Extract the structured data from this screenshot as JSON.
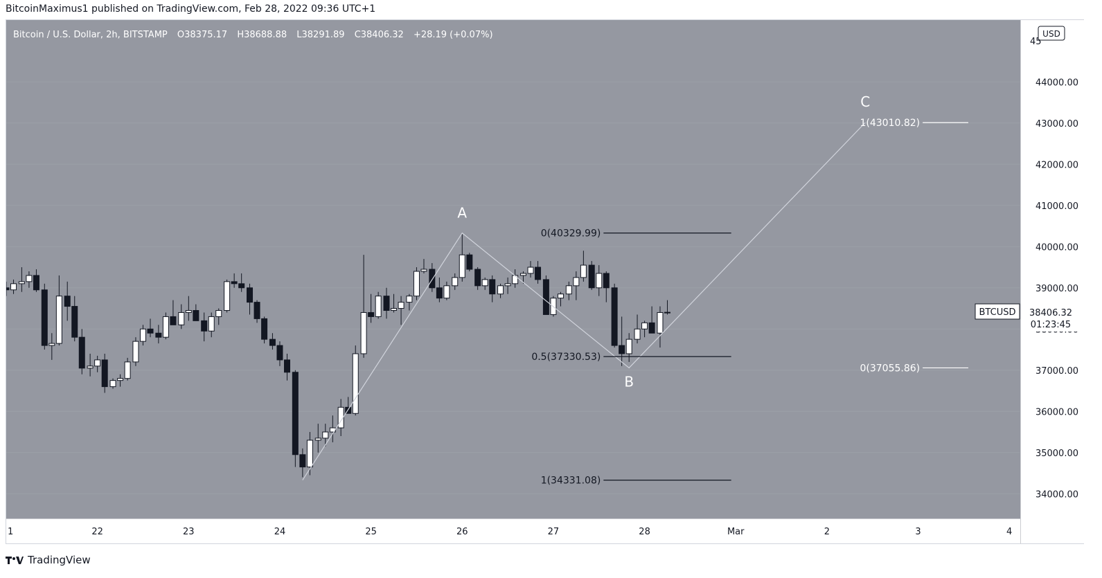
{
  "header": {
    "publisher": "BitcoinMaximus1 published on TradingView.com, Feb 28, 2022 09:36 UTC+1"
  },
  "footer": {
    "brand": "TradingView"
  },
  "colors": {
    "plot_bg": "#9598a1",
    "axis_bg": "#ffffff",
    "candle_up": "#ffffff",
    "candle_down": "#131722",
    "wave_line": "#d1d4dc",
    "fib_line": "#131722",
    "label_text": "#ffffff"
  },
  "legend": {
    "symbol": "Bitcoin / U.S. Dollar, 2h, BITSTAMP",
    "o_label": "O",
    "o_value": "38375.17",
    "h_label": "H",
    "h_value": "38688.88",
    "l_label": "L",
    "l_value": "38291.89",
    "c_label": "C",
    "c_value": "38406.32",
    "change": "+28.19 (+0.07%)"
  },
  "chart_data": {
    "type": "candlestick",
    "title": "Bitcoin / U.S. Dollar, 2h, BITSTAMP",
    "currency": "USD",
    "ylim": [
      33400,
      45500
    ],
    "y_ticks": [
      34000,
      35000,
      36000,
      37000,
      38000,
      39000,
      40000,
      41000,
      42000,
      43000,
      44000
    ],
    "y_tick_labels": [
      "34000.00",
      "35000.00",
      "36000.00",
      "37000.00",
      "38000.00",
      "39000.00",
      "40000.00",
      "41000.00",
      "42000.00",
      "43000.00",
      "44000.00"
    ],
    "y_top_partial_label": "45",
    "x_axis": {
      "first_label": "1",
      "labels": [
        {
          "t": 22,
          "label": "22"
        },
        {
          "t": 23,
          "label": "23"
        },
        {
          "t": 24,
          "label": "24"
        },
        {
          "t": 25,
          "label": "25"
        },
        {
          "t": 26,
          "label": "26"
        },
        {
          "t": 27,
          "label": "27"
        },
        {
          "t": 28,
          "label": "28"
        },
        {
          "t": 29,
          "label": "Mar"
        },
        {
          "t": 30,
          "label": "2"
        },
        {
          "t": 31,
          "label": "3"
        },
        {
          "t": 32,
          "label": "4"
        }
      ]
    },
    "symbol_badge": "BTCUSD",
    "last_price_label": "38406.32",
    "countdown_label": "01:23:45",
    "candles": [
      [
        21.0,
        39000,
        39150,
        38800,
        38950
      ],
      [
        21.08,
        38950,
        39200,
        38850,
        39100
      ],
      [
        21.17,
        39100,
        39500,
        38900,
        39150
      ],
      [
        21.25,
        39150,
        39400,
        39000,
        39300
      ],
      [
        21.33,
        39300,
        39450,
        38900,
        38950
      ],
      [
        21.42,
        38950,
        39100,
        37500,
        37600
      ],
      [
        21.5,
        37600,
        37900,
        37250,
        37650
      ],
      [
        21.58,
        37650,
        39300,
        37600,
        38800
      ],
      [
        21.67,
        38800,
        39150,
        38200,
        38550
      ],
      [
        21.75,
        38550,
        38800,
        37700,
        37800
      ],
      [
        21.83,
        37800,
        38000,
        36900,
        37050
      ],
      [
        21.92,
        37050,
        37400,
        36850,
        37100
      ],
      [
        22.0,
        37100,
        37350,
        36950,
        37250
      ],
      [
        22.08,
        37250,
        37400,
        36450,
        36600
      ],
      [
        22.17,
        36600,
        36800,
        36550,
        36750
      ],
      [
        22.25,
        36750,
        36900,
        36600,
        36800
      ],
      [
        22.33,
        36800,
        37300,
        36750,
        37200
      ],
      [
        22.42,
        37200,
        37800,
        37100,
        37700
      ],
      [
        22.5,
        37700,
        38100,
        37600,
        38000
      ],
      [
        22.58,
        38000,
        38250,
        37800,
        37900
      ],
      [
        22.67,
        37900,
        38100,
        37650,
        37800
      ],
      [
        22.75,
        37800,
        38400,
        37750,
        38300
      ],
      [
        22.83,
        38300,
        38700,
        38100,
        38100
      ],
      [
        22.92,
        38100,
        38600,
        38000,
        38400
      ],
      [
        23.0,
        38400,
        38800,
        38200,
        38450
      ],
      [
        23.08,
        38450,
        38600,
        38200,
        38200
      ],
      [
        23.17,
        38200,
        38400,
        37700,
        37950
      ],
      [
        23.25,
        37950,
        38400,
        37800,
        38300
      ],
      [
        23.33,
        38300,
        38500,
        38100,
        38450
      ],
      [
        23.42,
        38450,
        39200,
        38400,
        39150
      ],
      [
        23.5,
        39150,
        39350,
        39000,
        39100
      ],
      [
        23.58,
        39100,
        39350,
        38900,
        39000
      ],
      [
        23.67,
        39000,
        39100,
        38350,
        38650
      ],
      [
        23.75,
        38650,
        38700,
        38150,
        38250
      ],
      [
        23.83,
        38250,
        38300,
        37650,
        37750
      ],
      [
        23.92,
        37750,
        37900,
        37500,
        37600
      ],
      [
        24.0,
        37600,
        37700,
        37100,
        37250
      ],
      [
        24.08,
        37250,
        37400,
        36750,
        36950
      ],
      [
        24.17,
        36950,
        37000,
        34650,
        34950
      ],
      [
        24.25,
        34950,
        35100,
        34400,
        34650
      ],
      [
        24.33,
        34650,
        35500,
        34450,
        35300
      ],
      [
        24.42,
        35300,
        35700,
        35000,
        35350
      ],
      [
        24.5,
        35350,
        35700,
        35150,
        35500
      ],
      [
        24.58,
        35500,
        35900,
        35250,
        35600
      ],
      [
        24.67,
        35600,
        36300,
        35400,
        36100
      ],
      [
        24.75,
        36100,
        36350,
        35950,
        35950
      ],
      [
        24.83,
        35950,
        37600,
        35900,
        37400
      ],
      [
        24.92,
        37400,
        39800,
        37300,
        38400
      ],
      [
        25.0,
        38400,
        38850,
        38150,
        38300
      ],
      [
        25.08,
        38300,
        38900,
        38250,
        38800
      ],
      [
        25.17,
        38800,
        39000,
        38250,
        38450
      ],
      [
        25.25,
        38450,
        38850,
        38400,
        38500
      ],
      [
        25.33,
        38500,
        38800,
        38100,
        38650
      ],
      [
        25.42,
        38650,
        38850,
        38450,
        38800
      ],
      [
        25.5,
        38800,
        39500,
        38700,
        39400
      ],
      [
        25.58,
        39400,
        39700,
        39350,
        39450
      ],
      [
        25.67,
        39450,
        39600,
        38900,
        39000
      ],
      [
        25.75,
        39000,
        39250,
        38650,
        38750
      ],
      [
        25.83,
        38750,
        39150,
        38700,
        39050
      ],
      [
        25.92,
        39050,
        39350,
        38950,
        39250
      ],
      [
        26.0,
        39250,
        40300,
        39150,
        39800
      ],
      [
        26.08,
        39800,
        39850,
        39400,
        39450
      ],
      [
        26.17,
        39450,
        39500,
        38950,
        39050
      ],
      [
        26.25,
        39050,
        39250,
        38950,
        39200
      ],
      [
        26.33,
        39200,
        39300,
        38650,
        38850
      ],
      [
        26.42,
        38850,
        39100,
        38750,
        39050
      ],
      [
        26.5,
        39050,
        39250,
        38850,
        39100
      ],
      [
        26.58,
        39100,
        39450,
        39000,
        39300
      ],
      [
        26.67,
        39300,
        39400,
        39100,
        39350
      ],
      [
        26.75,
        39350,
        39650,
        39250,
        39500
      ],
      [
        26.83,
        39500,
        39650,
        39100,
        39200
      ],
      [
        26.92,
        39200,
        39300,
        38350,
        38350
      ],
      [
        27.0,
        38350,
        38800,
        38300,
        38750
      ],
      [
        27.08,
        38750,
        38900,
        38550,
        38850
      ],
      [
        27.17,
        38850,
        39150,
        38700,
        39050
      ],
      [
        27.25,
        39050,
        39400,
        38700,
        39250
      ],
      [
        27.33,
        39250,
        39900,
        39150,
        39550
      ],
      [
        27.42,
        39550,
        39650,
        38950,
        39000
      ],
      [
        27.5,
        39000,
        39550,
        38800,
        39350
      ],
      [
        27.58,
        39350,
        39400,
        38650,
        39000
      ],
      [
        27.67,
        39000,
        39100,
        37550,
        37600
      ],
      [
        27.75,
        37600,
        38300,
        37100,
        37400
      ],
      [
        27.83,
        37400,
        37900,
        37200,
        37750
      ],
      [
        27.92,
        37750,
        38350,
        37650,
        38000
      ],
      [
        28.0,
        38000,
        38200,
        37800,
        38150
      ],
      [
        28.08,
        38150,
        38550,
        37950,
        37900
      ],
      [
        28.17,
        37900,
        38550,
        37550,
        38400
      ],
      [
        28.25,
        38400,
        38700,
        38350,
        38406
      ]
    ],
    "wave_path": [
      {
        "t": 24.25,
        "p": 34331.08
      },
      {
        "t": 26.0,
        "p": 40329.99
      },
      {
        "t": 27.83,
        "p": 37055.86
      },
      {
        "t": 30.42,
        "p": 43010.82
      }
    ],
    "wave_labels": [
      {
        "text": "A",
        "t": 26.0,
        "p": 40700
      },
      {
        "text": "B",
        "t": 27.83,
        "p": 36600
      },
      {
        "text": "C",
        "t": 30.42,
        "p": 43400
      }
    ],
    "retracement": {
      "t_start": 27.55,
      "t_end": 28.95,
      "levels": [
        {
          "label": "0(40329.99)",
          "price": 40329.99
        },
        {
          "label": "0.5(37330.53)",
          "price": 37330.53
        },
        {
          "label": "1(34331.08)",
          "price": 34331.08
        }
      ]
    },
    "extension": {
      "t_start": 31.05,
      "t_end": 31.55,
      "levels": [
        {
          "label": "1(43010.82)",
          "price": 43010.82
        },
        {
          "label": "0(37055.86)",
          "price": 37055.86
        }
      ]
    }
  }
}
